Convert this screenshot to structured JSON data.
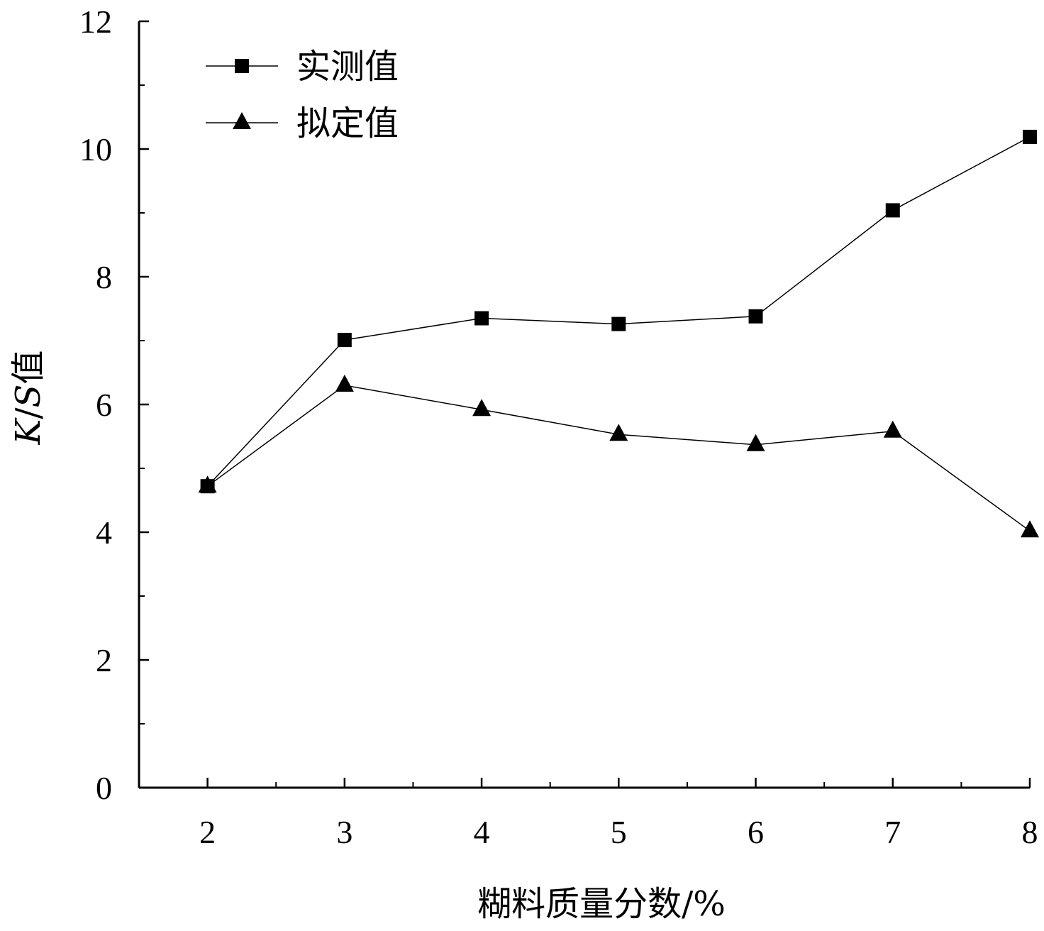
{
  "chart_data": {
    "type": "line",
    "xlabel": "糊料质量分数/%",
    "ylabel": {
      "k": "K",
      "slash": "/",
      "s": "S",
      "suffix": "值"
    },
    "x": [
      2,
      3,
      4,
      5,
      6,
      7,
      8
    ],
    "xlim": [
      1.5,
      8
    ],
    "ylim": [
      0,
      12
    ],
    "xticks": [
      2,
      3,
      4,
      5,
      6,
      7,
      8
    ],
    "yticks": [
      0,
      2,
      4,
      6,
      8,
      10,
      12
    ],
    "grid": false,
    "legend_position": "top-left",
    "series": [
      {
        "name": "实测值",
        "marker": "square",
        "values": [
          4.72,
          7.01,
          7.35,
          7.26,
          7.38,
          9.04,
          10.19
        ]
      },
      {
        "name": "拟定值",
        "marker": "triangle",
        "values": [
          4.72,
          6.3,
          5.92,
          5.53,
          5.37,
          5.58,
          4.02
        ]
      }
    ],
    "colors": {
      "line": "#000000",
      "marker": "#000000"
    }
  }
}
